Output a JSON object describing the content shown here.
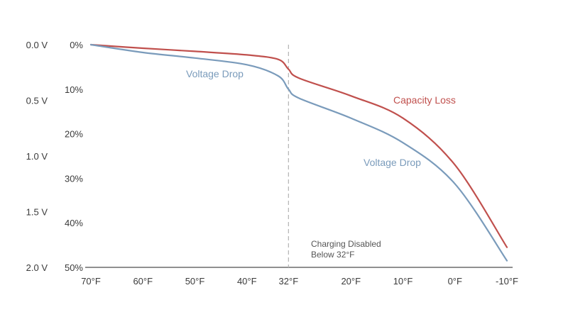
{
  "chart_data": {
    "type": "line",
    "title": "",
    "xlabel": "",
    "ylabel": "",
    "x_ticks": [
      "70°F",
      "60°F",
      "50°F",
      "40°F",
      "32°F",
      "20°F",
      "10°F",
      "0°F",
      "-10°F"
    ],
    "x_values": [
      70,
      60,
      50,
      40,
      32,
      20,
      10,
      0,
      -10
    ],
    "xlim": [
      70,
      -10
    ],
    "y_left": {
      "ticks": [
        "0.0 V",
        "0.5 V",
        "1.0 V",
        "1.5 V",
        "2.0 V"
      ],
      "values": [
        0.0,
        0.5,
        1.0,
        1.5,
        2.0
      ],
      "lim": [
        0.0,
        2.0
      ]
    },
    "y_right": {
      "ticks": [
        "0%",
        "10%",
        "20%",
        "30%",
        "40%",
        "50%"
      ],
      "values": [
        0,
        10,
        20,
        30,
        40,
        50
      ],
      "lim": [
        0,
        50
      ]
    },
    "grid": false,
    "series": [
      {
        "name": "Capacity Loss",
        "axis": "y_right",
        "color": "#c0504d",
        "points": [
          [
            70,
            0
          ],
          [
            60,
            0.8
          ],
          [
            50,
            1.5
          ],
          [
            40,
            2.3
          ],
          [
            34,
            3.3
          ],
          [
            32,
            5.5
          ],
          [
            30,
            7.5
          ],
          [
            20,
            11.5
          ],
          [
            10,
            16.5
          ],
          [
            0,
            27
          ],
          [
            -10,
            45.5
          ]
        ]
      },
      {
        "name": "Voltage Drop",
        "axis": "y_left",
        "color": "#7a9bbb",
        "points": [
          [
            70,
            0
          ],
          [
            60,
            0.07
          ],
          [
            50,
            0.12
          ],
          [
            40,
            0.18
          ],
          [
            34,
            0.28
          ],
          [
            32,
            0.4
          ],
          [
            30,
            0.48
          ],
          [
            20,
            0.66
          ],
          [
            10,
            0.88
          ],
          [
            0,
            1.25
          ],
          [
            -10,
            1.94
          ]
        ]
      }
    ],
    "labels": {
      "voltage_drop_upper": "Voltage Drop",
      "voltage_drop_lower": "Voltage Drop",
      "capacity_loss": "Capacity Loss"
    },
    "annotation": {
      "x": 32,
      "line1": "Charging Disabled",
      "line2": "Below 32°F"
    }
  }
}
